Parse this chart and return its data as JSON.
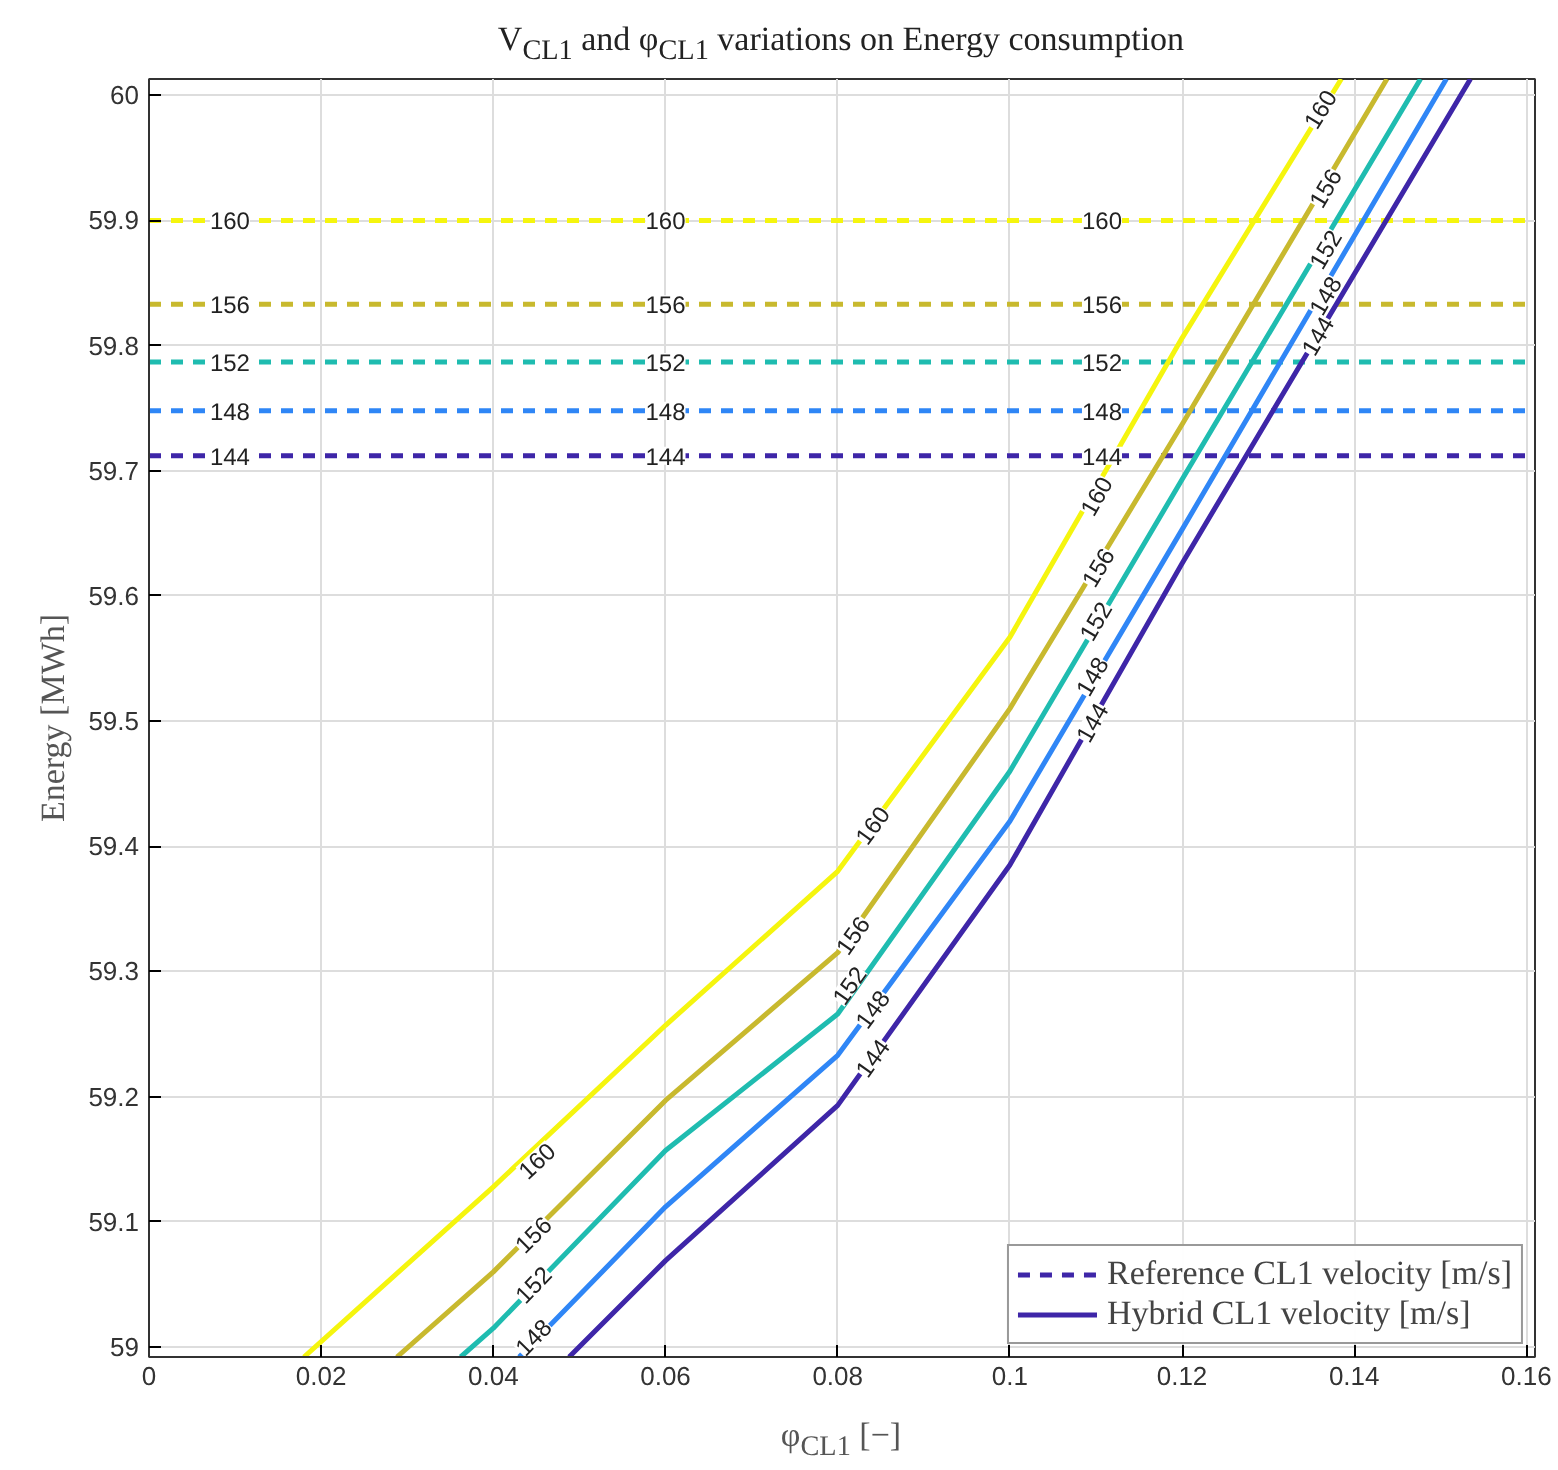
{
  "chart_data": {
    "type": "line",
    "title": "V$_{CL1}$ and φ$_{CL1}$ variations on Energy consumption",
    "xlabel": "φ$_{CL1}$ [−]",
    "ylabel": "Energy [MWh]",
    "xlim": [
      0,
      0.161
    ],
    "ylim": [
      58.992,
      60.013
    ],
    "xticks": [
      0,
      0.02,
      0.04,
      0.06,
      0.08,
      0.1,
      0.12,
      0.14,
      0.16
    ],
    "yticks": [
      59,
      59.1,
      59.2,
      59.3,
      59.4,
      59.5,
      59.6,
      59.7,
      59.8,
      59.9,
      60
    ],
    "grid": true,
    "legend": "bottom right",
    "series": [
      {
        "name": "Reference CL1 velocity [m/s]",
        "color": "#3e26a8",
        "line_style": "dashed",
        "x": [
          0,
          0.161
        ],
        "values": [
          59.712,
          59.712
        ]
      },
      {
        "color": "#2f86f6",
        "line_style": "dashed",
        "x": [
          0,
          0.161
        ],
        "values": [
          59.748,
          59.748
        ]
      },
      {
        "color": "#1fbcb0",
        "line_style": "dashed",
        "x": [
          0,
          0.161
        ],
        "values": [
          59.787,
          59.787
        ]
      },
      {
        "color": "#c8b92e",
        "line_style": "dashed",
        "x": [
          0,
          0.161
        ],
        "values": [
          59.833,
          59.833
        ]
      },
      {
        "color": "#f5f50e",
        "line_style": "dashed",
        "x": [
          0,
          0.161
        ],
        "values": [
          59.9,
          59.9
        ]
      },
      {
        "name": "Hybrid CL1 velocity [m/s]",
        "color": "#3e26a8",
        "line_style": "solid",
        "x": [
          0.0488,
          0.06,
          0.08,
          0.1,
          0.12,
          0.1535
        ],
        "values": [
          58.992,
          59.069,
          59.193,
          59.385,
          59.626,
          60.013
        ]
      },
      {
        "color": "#2f86f6",
        "line_style": "solid",
        "x": [
          0.043,
          0.06,
          0.08,
          0.1,
          0.12,
          0.1507
        ],
        "values": [
          58.992,
          59.112,
          59.233,
          59.42,
          59.653,
          60.013
        ]
      },
      {
        "color": "#1fbcb0",
        "line_style": "solid",
        "x": [
          0.0362,
          0.04,
          0.06,
          0.08,
          0.1,
          0.12,
          0.1477
        ],
        "values": [
          58.992,
          59.015,
          59.157,
          59.266,
          59.46,
          59.693,
          60.013
        ]
      },
      {
        "color": "#c8b92e",
        "line_style": "solid",
        "x": [
          0.0288,
          0.04,
          0.06,
          0.08,
          0.1,
          0.12,
          0.1438
        ],
        "values": [
          58.992,
          59.06,
          59.197,
          59.315,
          59.51,
          59.737,
          60.013
        ]
      },
      {
        "color": "#f5f50e",
        "line_style": "solid",
        "x": [
          0.018,
          0.04,
          0.06,
          0.08,
          0.1,
          0.12,
          0.1385
        ],
        "values": [
          58.992,
          59.128,
          59.257,
          59.38,
          59.567,
          59.806,
          60.013
        ]
      }
    ],
    "annotations": [
      {
        "text": "144",
        "x": 0.0094,
        "y": 59.712
      },
      {
        "text": "144",
        "x": 0.06,
        "y": 59.712
      },
      {
        "text": "144",
        "x": 0.1107,
        "y": 59.712
      },
      {
        "text": "148",
        "x": 0.0094,
        "y": 59.748
      },
      {
        "text": "148",
        "x": 0.06,
        "y": 59.748
      },
      {
        "text": "148",
        "x": 0.1107,
        "y": 59.748
      },
      {
        "text": "152",
        "x": 0.0094,
        "y": 59.787
      },
      {
        "text": "152",
        "x": 0.06,
        "y": 59.787
      },
      {
        "text": "152",
        "x": 0.1107,
        "y": 59.787
      },
      {
        "text": "156",
        "x": 0.0094,
        "y": 59.833
      },
      {
        "text": "156",
        "x": 0.06,
        "y": 59.833
      },
      {
        "text": "156",
        "x": 0.1107,
        "y": 59.833
      },
      {
        "text": "160",
        "x": 0.0094,
        "y": 59.9
      },
      {
        "text": "160",
        "x": 0.06,
        "y": 59.9
      },
      {
        "text": "160",
        "x": 0.1107,
        "y": 59.9
      },
      {
        "text": "160",
        "x": 0.045,
        "y": 59.149
      },
      {
        "text": "160",
        "x": 0.084,
        "y": 59.417
      },
      {
        "text": "160",
        "x": 0.11,
        "y": 59.68
      },
      {
        "text": "160",
        "x": 0.136,
        "y": 59.989
      },
      {
        "text": "156",
        "x": 0.0446,
        "y": 59.09
      },
      {
        "text": "156",
        "x": 0.0817,
        "y": 59.329
      },
      {
        "text": "156",
        "x": 0.1102,
        "y": 59.623
      },
      {
        "text": "156",
        "x": 0.1366,
        "y": 59.926
      },
      {
        "text": "152",
        "x": 0.0446,
        "y": 59.05
      },
      {
        "text": "152",
        "x": 0.0813,
        "y": 59.289
      },
      {
        "text": "152",
        "x": 0.1099,
        "y": 59.58
      },
      {
        "text": "152",
        "x": 0.1366,
        "y": 59.877
      },
      {
        "text": "148",
        "x": 0.0446,
        "y": 59.008
      },
      {
        "text": "148",
        "x": 0.084,
        "y": 59.27
      },
      {
        "text": "148",
        "x": 0.1095,
        "y": 59.536
      },
      {
        "text": "148",
        "x": 0.1366,
        "y": 59.84
      },
      {
        "text": "144",
        "x": 0.084,
        "y": 59.231
      },
      {
        "text": "144",
        "x": 0.1095,
        "y": 59.499
      },
      {
        "text": "144",
        "x": 0.1357,
        "y": 59.808
      }
    ]
  }
}
